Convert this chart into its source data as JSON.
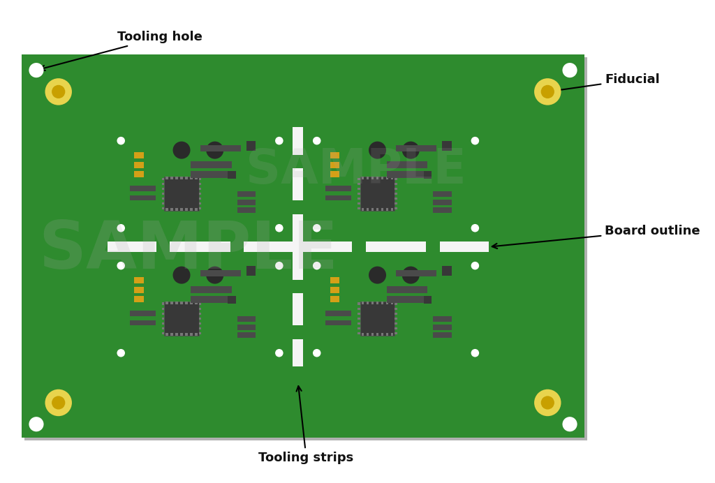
{
  "bg_color": "#ffffff",
  "panel_green": "#2e8b2e",
  "panel_green_dark": "#267326",
  "panel_green_light": "#339933",
  "white_gap": "#f5f5f5",
  "ic_color": "#383838",
  "comp_color": "#4a4a4a",
  "comp_med": "#555555",
  "cap_color": "#2a2a2a",
  "gold_color": "#d4a017",
  "fiducial_yellow": "#e8d44d",
  "fiducial_ring": "#c8a000",
  "shadow_color": "#b0b0b0",
  "label_color": "#111111",
  "labels": {
    "tooling_hole": "Tooling hole",
    "fiducial": "Fiducial",
    "board_outline": "Board outline",
    "tooling_strips": "Tooling strips"
  },
  "font_size": 13
}
